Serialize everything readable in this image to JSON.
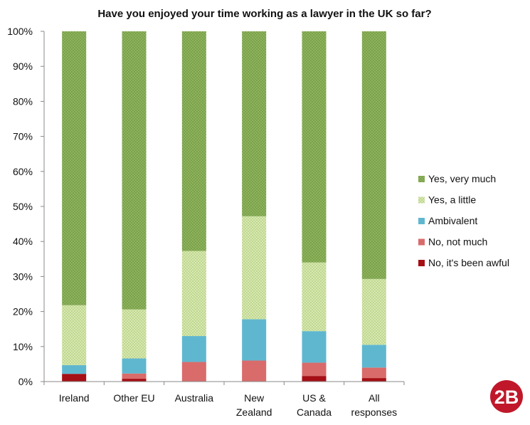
{
  "chart_data": {
    "type": "bar",
    "stacked": true,
    "title": "Have you enjoyed your time working as a lawyer in the UK so far?",
    "xlabel": "",
    "ylabel": "",
    "ylim": [
      0,
      100
    ],
    "y_ticks": [
      "0%",
      "10%",
      "20%",
      "30%",
      "40%",
      "50%",
      "60%",
      "70%",
      "80%",
      "90%",
      "100%"
    ],
    "grid": false,
    "legend_position": "right",
    "categories": [
      [
        "Ireland"
      ],
      [
        "Other EU"
      ],
      [
        "Australia"
      ],
      [
        "New",
        "Zealand"
      ],
      [
        "US &",
        "Canada"
      ],
      [
        "All",
        "responses"
      ]
    ],
    "series": [
      {
        "name": "No, it's been awful",
        "color": "#a50f15",
        "pattern": "solid",
        "values": [
          2.2,
          0.8,
          0,
          0,
          1.6,
          1.0
        ]
      },
      {
        "name": "No, not much",
        "color": "#d96b6b",
        "pattern": "solid",
        "values": [
          0,
          1.5,
          5.6,
          6.0,
          3.8,
          3.0
        ]
      },
      {
        "name": "Ambivalent",
        "color": "#5fb7cf",
        "pattern": "solid",
        "values": [
          2.5,
          4.3,
          7.4,
          11.8,
          9.0,
          6.5
        ]
      },
      {
        "name": "Yes, a little",
        "color": "#cfe3a0",
        "pattern": "dotted",
        "values": [
          17.1,
          14.0,
          24.3,
          29.4,
          19.6,
          18.8
        ]
      },
      {
        "name": "Yes, very much",
        "color": "#8db35c",
        "pattern": "dotted",
        "values": [
          78.2,
          79.4,
          62.7,
          52.8,
          66.0,
          70.7
        ]
      }
    ]
  },
  "logo": {
    "text": "2B",
    "color": "#c0182a"
  }
}
